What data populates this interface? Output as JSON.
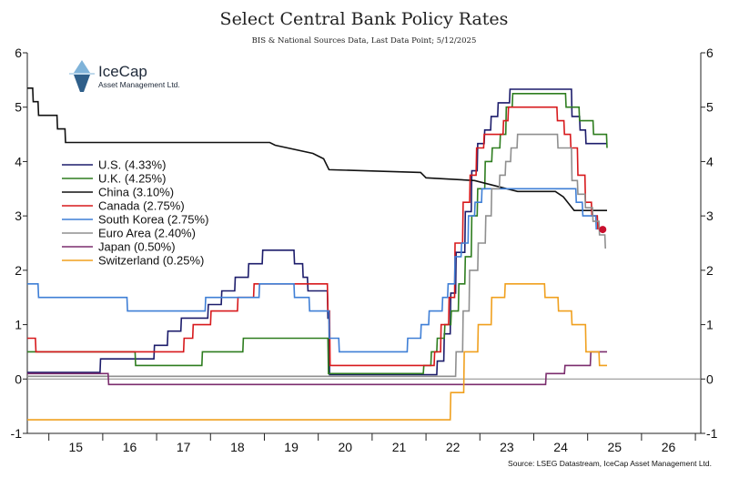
{
  "logo": {
    "name": "IceCap",
    "subtitle": "Asset Management Ltd."
  },
  "chart_data": {
    "type": "line",
    "title": "Select Central Bank Policy Rates",
    "subtitle": "BIS & National Sources Data, Last Data Point; 5/12/2025",
    "source": "Source: LSEG Datastream, IceCap Asset Management Ltd.",
    "xlabel": "",
    "ylabel": "",
    "xlim": [
      2014.6,
      2027.1
    ],
    "ylim": [
      -1,
      6
    ],
    "x_ticks": [
      2015,
      2016,
      2017,
      2018,
      2019,
      2020,
      2021,
      2022,
      2023,
      2024,
      2025,
      2026
    ],
    "x_tick_labels": [
      "15",
      "16",
      "17",
      "18",
      "19",
      "20",
      "21",
      "22",
      "23",
      "24",
      "25",
      "26"
    ],
    "y_ticks": [
      -1,
      0,
      1,
      2,
      3,
      4,
      5,
      6
    ],
    "y_tick_labels": [
      "-1",
      "0",
      "1",
      "2",
      "3",
      "4",
      "5",
      "6"
    ],
    "legend_position": "left",
    "series": [
      {
        "name": "U.S. (4.33%)",
        "color": "#1c1c6b",
        "points": [
          [
            2014.6,
            0.12
          ],
          [
            2015.95,
            0.12
          ],
          [
            2015.96,
            0.37
          ],
          [
            2016.95,
            0.37
          ],
          [
            2016.96,
            0.62
          ],
          [
            2017.2,
            0.62
          ],
          [
            2017.21,
            0.88
          ],
          [
            2017.45,
            0.88
          ],
          [
            2017.46,
            1.12
          ],
          [
            2017.95,
            1.12
          ],
          [
            2017.96,
            1.37
          ],
          [
            2018.2,
            1.37
          ],
          [
            2018.21,
            1.62
          ],
          [
            2018.45,
            1.62
          ],
          [
            2018.46,
            1.87
          ],
          [
            2018.7,
            1.87
          ],
          [
            2018.71,
            2.12
          ],
          [
            2018.96,
            2.12
          ],
          [
            2018.97,
            2.37
          ],
          [
            2019.55,
            2.37
          ],
          [
            2019.56,
            2.12
          ],
          [
            2019.71,
            2.12
          ],
          [
            2019.72,
            1.87
          ],
          [
            2019.8,
            1.87
          ],
          [
            2019.81,
            1.62
          ],
          [
            2020.17,
            1.62
          ],
          [
            2020.18,
            1.12
          ],
          [
            2020.2,
            1.12
          ],
          [
            2020.21,
            0.08
          ],
          [
            2022.2,
            0.08
          ],
          [
            2022.21,
            0.33
          ],
          [
            2022.33,
            0.33
          ],
          [
            2022.34,
            0.83
          ],
          [
            2022.45,
            0.83
          ],
          [
            2022.46,
            1.58
          ],
          [
            2022.55,
            1.58
          ],
          [
            2022.56,
            2.33
          ],
          [
            2022.72,
            2.33
          ],
          [
            2022.73,
            3.08
          ],
          [
            2022.84,
            3.08
          ],
          [
            2022.85,
            3.83
          ],
          [
            2022.95,
            3.83
          ],
          [
            2022.96,
            4.33
          ],
          [
            2023.08,
            4.33
          ],
          [
            2023.09,
            4.58
          ],
          [
            2023.2,
            4.58
          ],
          [
            2023.21,
            4.83
          ],
          [
            2023.33,
            4.83
          ],
          [
            2023.34,
            5.08
          ],
          [
            2023.55,
            5.08
          ],
          [
            2023.56,
            5.33
          ],
          [
            2024.7,
            5.33
          ],
          [
            2024.71,
            4.83
          ],
          [
            2024.85,
            4.83
          ],
          [
            2024.86,
            4.58
          ],
          [
            2024.96,
            4.58
          ],
          [
            2024.97,
            4.33
          ],
          [
            2025.36,
            4.33
          ]
        ]
      },
      {
        "name": "U.K. (4.25%)",
        "color": "#2e7d1f",
        "points": [
          [
            2014.6,
            0.5
          ],
          [
            2016.6,
            0.5
          ],
          [
            2016.61,
            0.25
          ],
          [
            2017.84,
            0.25
          ],
          [
            2017.85,
            0.5
          ],
          [
            2018.6,
            0.5
          ],
          [
            2018.61,
            0.75
          ],
          [
            2020.18,
            0.75
          ],
          [
            2020.19,
            0.1
          ],
          [
            2021.95,
            0.1
          ],
          [
            2021.96,
            0.25
          ],
          [
            2022.09,
            0.25
          ],
          [
            2022.1,
            0.5
          ],
          [
            2022.2,
            0.5
          ],
          [
            2022.21,
            0.75
          ],
          [
            2022.34,
            0.75
          ],
          [
            2022.35,
            1.0
          ],
          [
            2022.46,
            1.0
          ],
          [
            2022.47,
            1.25
          ],
          [
            2022.6,
            1.25
          ],
          [
            2022.61,
            1.75
          ],
          [
            2022.72,
            1.75
          ],
          [
            2022.73,
            2.25
          ],
          [
            2022.84,
            2.25
          ],
          [
            2022.85,
            3.0
          ],
          [
            2022.95,
            3.0
          ],
          [
            2022.96,
            3.5
          ],
          [
            2023.09,
            3.5
          ],
          [
            2023.1,
            4.0
          ],
          [
            2023.22,
            4.0
          ],
          [
            2023.23,
            4.25
          ],
          [
            2023.37,
            4.25
          ],
          [
            2023.38,
            4.5
          ],
          [
            2023.48,
            4.5
          ],
          [
            2023.49,
            5.0
          ],
          [
            2023.6,
            5.0
          ],
          [
            2023.61,
            5.25
          ],
          [
            2024.59,
            5.25
          ],
          [
            2024.6,
            5.0
          ],
          [
            2024.84,
            5.0
          ],
          [
            2024.85,
            4.75
          ],
          [
            2025.1,
            4.75
          ],
          [
            2025.11,
            4.5
          ],
          [
            2025.35,
            4.5
          ],
          [
            2025.36,
            4.25
          ]
        ]
      },
      {
        "name": "China (3.10%)",
        "color": "#111111",
        "points": [
          [
            2014.6,
            5.35
          ],
          [
            2014.7,
            5.35
          ],
          [
            2014.71,
            5.1
          ],
          [
            2014.8,
            5.1
          ],
          [
            2014.81,
            4.85
          ],
          [
            2015.15,
            4.85
          ],
          [
            2015.16,
            4.6
          ],
          [
            2015.3,
            4.6
          ],
          [
            2015.31,
            4.35
          ],
          [
            2019.1,
            4.35
          ],
          [
            2019.2,
            4.3
          ],
          [
            2019.9,
            4.15
          ],
          [
            2020.1,
            4.05
          ],
          [
            2020.2,
            3.85
          ],
          [
            2021.9,
            3.8
          ],
          [
            2022.0,
            3.7
          ],
          [
            2022.9,
            3.65
          ],
          [
            2023.3,
            3.55
          ],
          [
            2023.7,
            3.45
          ],
          [
            2024.4,
            3.45
          ],
          [
            2024.55,
            3.35
          ],
          [
            2024.75,
            3.1
          ],
          [
            2025.36,
            3.1
          ]
        ]
      },
      {
        "name": "Canada (2.75%)",
        "color": "#d7191c",
        "points": [
          [
            2014.6,
            0.75
          ],
          [
            2014.75,
            0.75
          ],
          [
            2014.76,
            0.5
          ],
          [
            2017.5,
            0.5
          ],
          [
            2017.51,
            0.75
          ],
          [
            2017.67,
            0.75
          ],
          [
            2017.68,
            1.0
          ],
          [
            2018.0,
            1.0
          ],
          [
            2018.01,
            1.25
          ],
          [
            2018.5,
            1.25
          ],
          [
            2018.51,
            1.5
          ],
          [
            2018.8,
            1.5
          ],
          [
            2018.81,
            1.75
          ],
          [
            2020.17,
            1.75
          ],
          [
            2020.18,
            1.25
          ],
          [
            2020.21,
            1.25
          ],
          [
            2020.22,
            0.25
          ],
          [
            2022.15,
            0.25
          ],
          [
            2022.16,
            0.5
          ],
          [
            2022.27,
            0.5
          ],
          [
            2022.28,
            1.0
          ],
          [
            2022.42,
            1.0
          ],
          [
            2022.43,
            1.5
          ],
          [
            2022.53,
            1.5
          ],
          [
            2022.54,
            2.5
          ],
          [
            2022.68,
            2.5
          ],
          [
            2022.69,
            3.25
          ],
          [
            2022.81,
            3.25
          ],
          [
            2022.82,
            3.75
          ],
          [
            2022.93,
            3.75
          ],
          [
            2022.94,
            4.25
          ],
          [
            2023.07,
            4.25
          ],
          [
            2023.08,
            4.5
          ],
          [
            2023.43,
            4.5
          ],
          [
            2023.44,
            4.75
          ],
          [
            2023.52,
            4.75
          ],
          [
            2023.53,
            5.0
          ],
          [
            2024.43,
            5.0
          ],
          [
            2024.44,
            4.75
          ],
          [
            2024.56,
            4.75
          ],
          [
            2024.57,
            4.5
          ],
          [
            2024.68,
            4.5
          ],
          [
            2024.69,
            4.25
          ],
          [
            2024.81,
            4.25
          ],
          [
            2024.82,
            3.75
          ],
          [
            2024.95,
            3.75
          ],
          [
            2024.96,
            3.25
          ],
          [
            2025.07,
            3.25
          ],
          [
            2025.08,
            3.0
          ],
          [
            2025.18,
            3.0
          ],
          [
            2025.19,
            2.75
          ]
        ]
      },
      {
        "name": "South Korea (2.75%)",
        "color": "#3f7fd6",
        "points": [
          [
            2014.6,
            1.75
          ],
          [
            2014.8,
            1.75
          ],
          [
            2014.81,
            1.5
          ],
          [
            2016.45,
            1.5
          ],
          [
            2016.46,
            1.25
          ],
          [
            2017.9,
            1.25
          ],
          [
            2017.91,
            1.5
          ],
          [
            2018.9,
            1.5
          ],
          [
            2018.91,
            1.75
          ],
          [
            2019.55,
            1.75
          ],
          [
            2019.56,
            1.5
          ],
          [
            2019.83,
            1.5
          ],
          [
            2019.84,
            1.25
          ],
          [
            2020.2,
            1.25
          ],
          [
            2020.21,
            0.75
          ],
          [
            2020.38,
            0.75
          ],
          [
            2020.39,
            0.5
          ],
          [
            2021.65,
            0.5
          ],
          [
            2021.66,
            0.75
          ],
          [
            2021.9,
            0.75
          ],
          [
            2021.91,
            1.0
          ],
          [
            2022.05,
            1.0
          ],
          [
            2022.06,
            1.25
          ],
          [
            2022.3,
            1.25
          ],
          [
            2022.31,
            1.5
          ],
          [
            2022.4,
            1.5
          ],
          [
            2022.41,
            1.75
          ],
          [
            2022.53,
            1.75
          ],
          [
            2022.54,
            2.25
          ],
          [
            2022.65,
            2.25
          ],
          [
            2022.66,
            2.5
          ],
          [
            2022.78,
            2.5
          ],
          [
            2022.79,
            3.0
          ],
          [
            2022.9,
            3.0
          ],
          [
            2022.91,
            3.25
          ],
          [
            2023.03,
            3.25
          ],
          [
            2023.04,
            3.5
          ],
          [
            2024.78,
            3.5
          ],
          [
            2024.79,
            3.25
          ],
          [
            2024.9,
            3.25
          ],
          [
            2024.91,
            3.0
          ],
          [
            2025.15,
            3.0
          ],
          [
            2025.16,
            2.75
          ]
        ]
      },
      {
        "name": "Euro Area (2.40%)",
        "color": "#8f8f8f",
        "points": [
          [
            2014.6,
            0.05
          ],
          [
            2022.55,
            0.05
          ],
          [
            2022.56,
            0.5
          ],
          [
            2022.68,
            0.5
          ],
          [
            2022.69,
            1.25
          ],
          [
            2022.8,
            1.25
          ],
          [
            2022.81,
            2.0
          ],
          [
            2022.96,
            2.0
          ],
          [
            2022.97,
            2.5
          ],
          [
            2023.1,
            2.5
          ],
          [
            2023.11,
            3.0
          ],
          [
            2023.21,
            3.0
          ],
          [
            2023.22,
            3.5
          ],
          [
            2023.36,
            3.5
          ],
          [
            2023.37,
            3.75
          ],
          [
            2023.47,
            3.75
          ],
          [
            2023.48,
            4.0
          ],
          [
            2023.57,
            4.0
          ],
          [
            2023.58,
            4.25
          ],
          [
            2023.69,
            4.25
          ],
          [
            2023.7,
            4.5
          ],
          [
            2024.44,
            4.5
          ],
          [
            2024.45,
            4.25
          ],
          [
            2024.7,
            4.25
          ],
          [
            2024.71,
            3.65
          ],
          [
            2024.81,
            3.65
          ],
          [
            2024.82,
            3.4
          ],
          [
            2024.95,
            3.4
          ],
          [
            2024.96,
            3.15
          ],
          [
            2025.09,
            3.15
          ],
          [
            2025.1,
            2.9
          ],
          [
            2025.21,
            2.9
          ],
          [
            2025.22,
            2.65
          ],
          [
            2025.32,
            2.65
          ],
          [
            2025.33,
            2.4
          ]
        ]
      },
      {
        "name": "Japan (0.50%)",
        "color": "#7b2d6e",
        "points": [
          [
            2014.6,
            0.1
          ],
          [
            2016.1,
            0.1
          ],
          [
            2016.11,
            -0.1
          ],
          [
            2024.22,
            -0.1
          ],
          [
            2024.23,
            0.1
          ],
          [
            2024.57,
            0.1
          ],
          [
            2024.58,
            0.25
          ],
          [
            2025.05,
            0.25
          ],
          [
            2025.06,
            0.5
          ],
          [
            2025.36,
            0.5
          ]
        ]
      },
      {
        "name": "Switzerland (0.25%)",
        "color": "#f0a01e",
        "points": [
          [
            2014.6,
            -0.75
          ],
          [
            2022.45,
            -0.75
          ],
          [
            2022.46,
            -0.25
          ],
          [
            2022.7,
            -0.25
          ],
          [
            2022.71,
            0.5
          ],
          [
            2022.96,
            0.5
          ],
          [
            2022.97,
            1.0
          ],
          [
            2023.21,
            1.0
          ],
          [
            2023.22,
            1.5
          ],
          [
            2023.46,
            1.5
          ],
          [
            2023.47,
            1.75
          ],
          [
            2024.2,
            1.75
          ],
          [
            2024.21,
            1.5
          ],
          [
            2024.45,
            1.5
          ],
          [
            2024.46,
            1.25
          ],
          [
            2024.7,
            1.25
          ],
          [
            2024.71,
            1.0
          ],
          [
            2024.96,
            1.0
          ],
          [
            2024.97,
            0.5
          ],
          [
            2025.21,
            0.5
          ],
          [
            2025.22,
            0.25
          ],
          [
            2025.36,
            0.25
          ]
        ]
      }
    ],
    "annotations": [
      {
        "type": "marker",
        "x": 2025.28,
        "y": 2.75,
        "color": "#c8102e"
      }
    ]
  }
}
